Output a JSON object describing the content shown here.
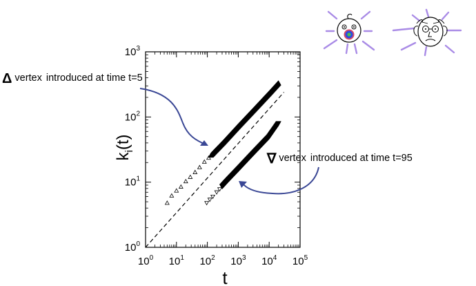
{
  "chart_data": {
    "type": "scatter",
    "title": "",
    "xlabel": "t",
    "ylabel": "k_i(t)",
    "xscale": "log",
    "yscale": "log",
    "xlim": [
      1,
      100000
    ],
    "ylim": [
      1,
      1000
    ],
    "x_ticks": [
      "10^0",
      "10^1",
      "10^2",
      "10^3",
      "10^4",
      "10^5"
    ],
    "y_ticks": [
      "10^0",
      "10^1",
      "10^2",
      "10^3"
    ],
    "grid": false,
    "series": [
      {
        "name": "vertex introduced at time t=5",
        "marker": "triangle-up",
        "x": [
          5,
          7,
          10,
          14,
          20,
          28,
          40,
          56,
          80,
          110,
          160,
          320,
          1000,
          3000,
          10000,
          20000
        ],
        "y": [
          4.8,
          6.2,
          7.4,
          8.5,
          10.3,
          12.0,
          14.2,
          16.9,
          20.5,
          23.6,
          28.5,
          40,
          72,
          125,
          230,
          330
        ]
      },
      {
        "name": "vertex introduced at time t=95",
        "marker": "triangle-down",
        "x": [
          95,
          120,
          150,
          200,
          250,
          300,
          400,
          500,
          1000,
          3000,
          10000,
          20000
        ],
        "y": [
          4.8,
          5.4,
          6.0,
          7.0,
          7.8,
          8.6,
          10.0,
          11.2,
          15.8,
          27.5,
          50,
          80
        ]
      }
    ],
    "reference_line": {
      "style": "dashed",
      "x": [
        1,
        30000
      ],
      "y": [
        1,
        240
      ]
    }
  },
  "annotations": {
    "upper": {
      "symbol": "Δ",
      "word1": "vertex",
      "text": "introduced at time t=5"
    },
    "lower": {
      "symbol": "∇",
      "word1": "vertex",
      "text": "introduced at time t=95"
    }
  },
  "colors": {
    "arrow": "#3a4795",
    "rays": "#a98be6",
    "pacifier": "#2c4de0",
    "axis": "#000000"
  },
  "icons": [
    "baby-face-icon",
    "old-man-face-icon"
  ]
}
